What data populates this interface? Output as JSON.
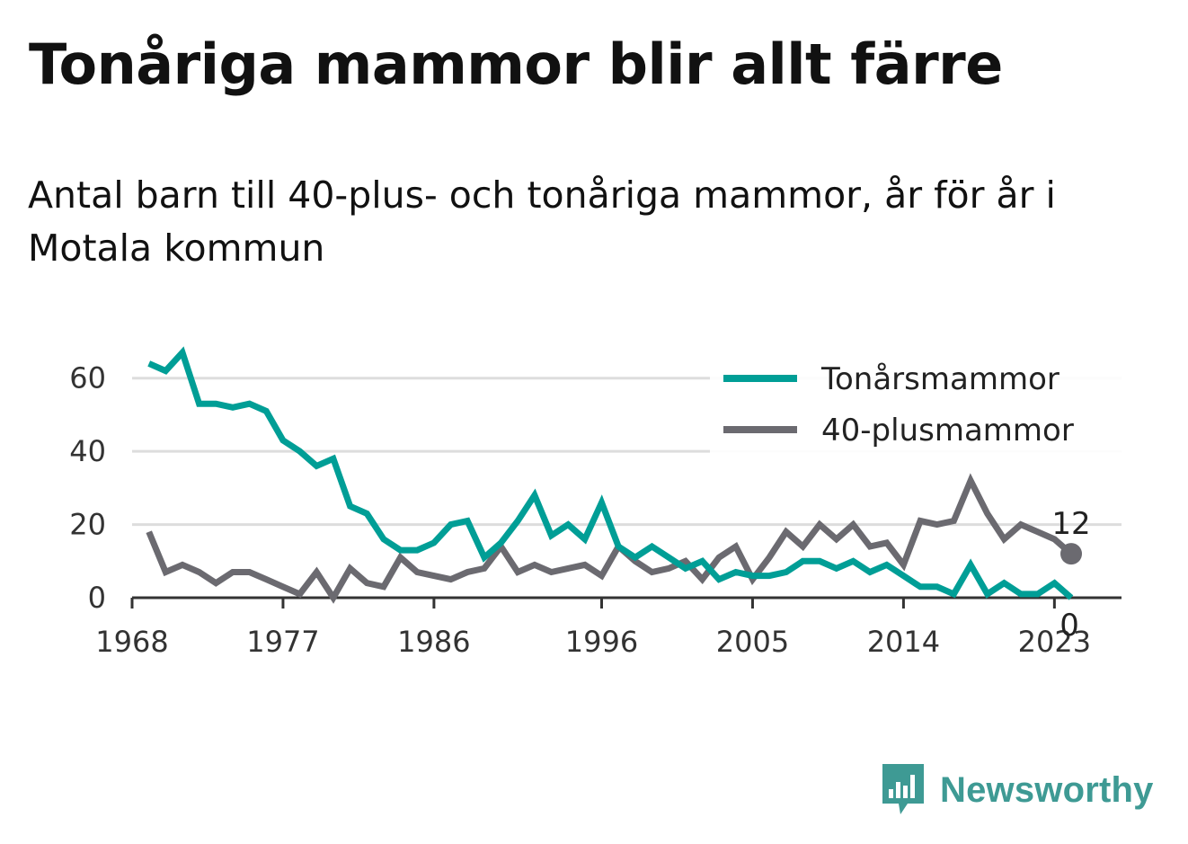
{
  "header": {
    "title": "Tonåriga mammor blir allt färre",
    "subtitle": "Antal barn till 40-plus- och tonåriga mammor, år för år i Motala kommun"
  },
  "brand": {
    "name": "Newsworthy",
    "icon": "newsworthy-logo-icon",
    "color": "#3e9a94"
  },
  "chart_data": {
    "type": "line",
    "title": "",
    "xlabel": "",
    "ylabel": "",
    "x": [
      1969,
      1970,
      1971,
      1972,
      1973,
      1974,
      1975,
      1976,
      1977,
      1978,
      1979,
      1980,
      1981,
      1982,
      1983,
      1984,
      1985,
      1986,
      1987,
      1988,
      1989,
      1990,
      1991,
      1992,
      1993,
      1994,
      1995,
      1996,
      1997,
      1998,
      1999,
      2000,
      2001,
      2002,
      2003,
      2004,
      2005,
      2006,
      2007,
      2008,
      2009,
      2010,
      2011,
      2012,
      2013,
      2014,
      2015,
      2016,
      2017,
      2018,
      2019,
      2020,
      2021,
      2022,
      2023,
      2024
    ],
    "x_ticks": [
      1968,
      1977,
      1986,
      1996,
      2005,
      2014,
      2023
    ],
    "xlim": [
      1968,
      2027
    ],
    "ylim": [
      0,
      70
    ],
    "y_ticks": [
      0,
      20,
      40,
      60
    ],
    "grid": true,
    "legend_position": "top-right",
    "series": [
      {
        "name": "Tonårsmammor",
        "color": "#009e96",
        "values": [
          64,
          62,
          67,
          53,
          53,
          52,
          53,
          51,
          43,
          40,
          36,
          38,
          25,
          23,
          16,
          13,
          13,
          15,
          20,
          21,
          11,
          15,
          21,
          28,
          17,
          20,
          16,
          26,
          14,
          11,
          14,
          11,
          8,
          10,
          5,
          7,
          6,
          6,
          7,
          10,
          10,
          8,
          10,
          7,
          9,
          6,
          3,
          3,
          1,
          9,
          1,
          4,
          1,
          1,
          4,
          0
        ]
      },
      {
        "name": "40-plusmammor",
        "color": "#6b6a70",
        "values": [
          18,
          7,
          9,
          7,
          4,
          7,
          7,
          5,
          3,
          1,
          7,
          0,
          8,
          4,
          3,
          11,
          7,
          6,
          5,
          7,
          8,
          14,
          7,
          9,
          7,
          8,
          9,
          6,
          14,
          10,
          7,
          8,
          10,
          5,
          11,
          14,
          5,
          11,
          18,
          14,
          20,
          16,
          20,
          14,
          15,
          9,
          21,
          20,
          21,
          32,
          23,
          16,
          20,
          18,
          16,
          12
        ]
      }
    ],
    "end_labels": [
      {
        "series": "40-plusmammor",
        "text": "12"
      },
      {
        "series": "Tonårsmammor",
        "text": "0"
      }
    ]
  }
}
